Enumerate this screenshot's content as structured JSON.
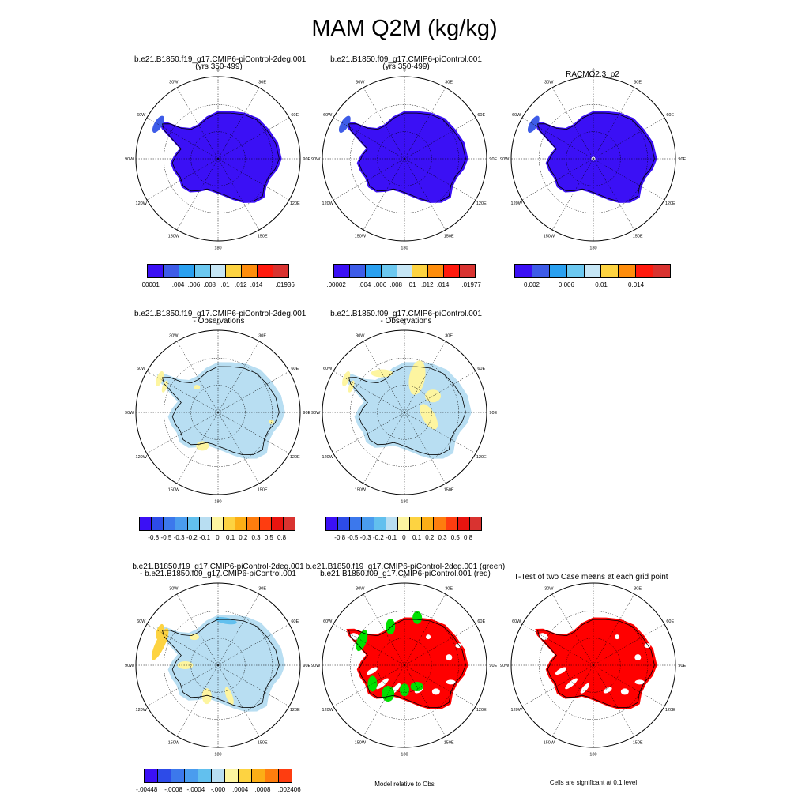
{
  "title": "MAM Q2M (kg/kg)",
  "lon_labels": [
    "0",
    "30E",
    "60E",
    "90E",
    "120E",
    "150E",
    "180",
    "150W",
    "120W",
    "90W",
    "60W",
    "30W"
  ],
  "row1": {
    "p1": {
      "title1": "b.e21.B1850.f19_g17.CMIP6-piControl-2deg.001",
      "title2": "(yrs 350-499)"
    },
    "p2": {
      "title1": "b.e21.B1850.f09_g17.CMIP6-piControl.001",
      "title2": "(yrs 350-499)"
    },
    "p3": {
      "title1": "RACMO2.3_p2"
    },
    "cb1_labels": [
      ".00001",
      ".004",
      ".006",
      ".008",
      ".01",
      ".012",
      ".014",
      ".01936"
    ],
    "cb2_labels": [
      ".00002",
      ".004",
      ".006",
      ".008",
      ".01",
      ".012",
      ".014",
      ".01977"
    ],
    "cb3_labels": [
      "0.002",
      "0.006",
      "0.01",
      "0.014"
    ]
  },
  "row2": {
    "p1": {
      "title1": "b.e21.B1850.f19_g17.CMIP6-piControl-2deg.001",
      "title2": "- Observations"
    },
    "p2": {
      "title1": "b.e21.B1850.f09_g17.CMIP6-piControl.001",
      "title2": "- Observations"
    },
    "cb_labels": [
      "-0.8",
      "-0.5",
      "-0.3",
      "-0.2",
      "-0.1",
      "0",
      "0.1",
      "0.2",
      "0.3",
      "0.5",
      "0.8"
    ]
  },
  "row3": {
    "p1": {
      "title1": "b.e21.B1850.f19_g17.CMIP6-piControl-2deg.001",
      "title2": "- b.e21.B1850.f09_g17.CMIP6-piControl.001"
    },
    "p2": {
      "title1": "b.e21.B1850.f19_g17.CMIP6-piControl-2deg.001 (green)",
      "title2": "b.e21.B1850.f09_g17.CMIP6-piControl.001 (red)"
    },
    "p3": {
      "title1": "T-Test of two Case means at each grid point"
    },
    "cb_labels": [
      "-.00448",
      "-.0008",
      "-.0004",
      "-.000",
      ".0004",
      ".0008",
      ".002406"
    ],
    "note_model": "Model relative to Obs",
    "note_ttest": "Cells are significant at 0.1 level"
  },
  "colors": {
    "abs": [
      "#3b10f5",
      "#3e5ce8",
      "#2aa0f0",
      "#6cc8f0",
      "#c6e6f5",
      "#fdd341",
      "#fe8d0c",
      "#ff1a0e",
      "#d93330"
    ],
    "diff": [
      "#3b10f5",
      "#2d4be8",
      "#3c78ec",
      "#4a9cee",
      "#62c0ee",
      "#b8def2",
      "#fdf5a0",
      "#fdd341",
      "#fcae16",
      "#fe7d0e",
      "#fe3d10",
      "#e8140f",
      "#d93330"
    ],
    "diff3": [
      "#3b10f5",
      "#2d4be8",
      "#3c78ec",
      "#4a9cee",
      "#62c0ee",
      "#b8def2",
      "#fdf5a0",
      "#fdd341",
      "#fcae16",
      "#fe7d0e",
      "#fe3d10",
      "#e8140f",
      "#d93330"
    ],
    "fill_abs": "#3b10f5",
    "fill_diff": "#b8def2",
    "fill_pos": "#fdf5a0",
    "fill_sig": "#ff0000",
    "fill_green": "#00e000"
  }
}
